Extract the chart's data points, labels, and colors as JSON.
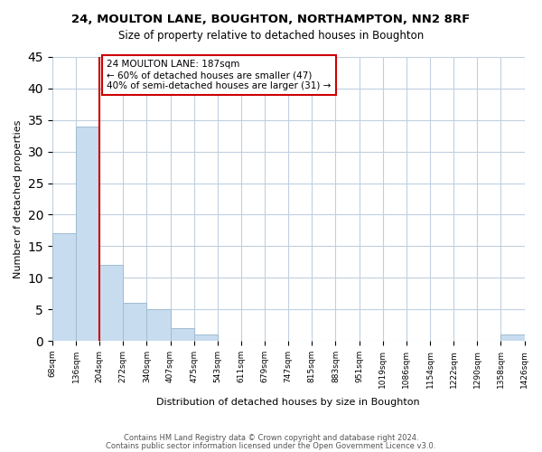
{
  "title": "24, MOULTON LANE, BOUGHTON, NORTHAMPTON, NN2 8RF",
  "subtitle": "Size of property relative to detached houses in Boughton",
  "xlabel": "Distribution of detached houses by size in Boughton",
  "ylabel": "Number of detached properties",
  "bar_values": [
    17,
    34,
    12,
    6,
    5,
    2,
    1,
    0,
    0,
    0,
    0,
    0,
    0,
    0,
    0,
    0,
    0,
    0,
    0,
    1
  ],
  "bin_labels": [
    "68sqm",
    "136sqm",
    "204sqm",
    "272sqm",
    "340sqm",
    "407sqm",
    "475sqm",
    "543sqm",
    "611sqm",
    "679sqm",
    "747sqm",
    "815sqm",
    "883sqm",
    "951sqm",
    "1019sqm",
    "1086sqm",
    "1154sqm",
    "1222sqm",
    "1290sqm",
    "1358sqm",
    "1426sqm"
  ],
  "bar_color": "#c8dcf0",
  "bar_edge_color": "#a0bcd0",
  "redline_x": 2,
  "annotation_title": "24 MOULTON LANE: 187sqm",
  "annotation_line1": "← 60% of detached houses are smaller (47)",
  "annotation_line2": "40% of semi-detached houses are larger (31) →",
  "annotation_box_edge": "#cc0000",
  "redline_color": "#cc0000",
  "ylim": [
    0,
    45
  ],
  "yticks": [
    0,
    5,
    10,
    15,
    20,
    25,
    30,
    35,
    40,
    45
  ],
  "footer1": "Contains HM Land Registry data © Crown copyright and database right 2024.",
  "footer2": "Contains public sector information licensed under the Open Government Licence v3.0.",
  "background_color": "#ffffff",
  "grid_color": "#c0d0e0"
}
